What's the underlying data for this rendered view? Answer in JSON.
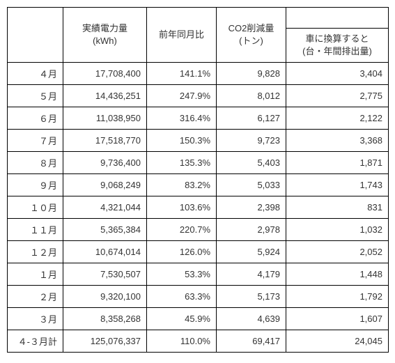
{
  "table": {
    "columns": {
      "month": "",
      "kwh": "実績電力量\n(kWh)",
      "yoy": "前年同月比",
      "co2": "CO2削減量\n(トン)",
      "car_top": "",
      "car_sub": "車に換算すると\n(台・年間排出量)"
    },
    "rows": [
      {
        "month": "４月",
        "kwh": "17,708,400",
        "yoy": "141.1%",
        "co2": "9,828",
        "car": "3,404"
      },
      {
        "month": "５月",
        "kwh": "14,436,251",
        "yoy": "247.9%",
        "co2": "8,012",
        "car": "2,775"
      },
      {
        "month": "６月",
        "kwh": "11,038,950",
        "yoy": "316.4%",
        "co2": "6,127",
        "car": "2,122"
      },
      {
        "month": "７月",
        "kwh": "17,518,770",
        "yoy": "150.3%",
        "co2": "9,723",
        "car": "3,368"
      },
      {
        "month": "８月",
        "kwh": "9,736,400",
        "yoy": "135.3%",
        "co2": "5,403",
        "car": "1,871"
      },
      {
        "month": "９月",
        "kwh": "9,068,249",
        "yoy": "83.2%",
        "co2": "5,033",
        "car": "1,743"
      },
      {
        "month": "１０月",
        "kwh": "4,321,044",
        "yoy": "103.6%",
        "co2": "2,398",
        "car": "831"
      },
      {
        "month": "１１月",
        "kwh": "5,365,384",
        "yoy": "220.7%",
        "co2": "2,978",
        "car": "1,032"
      },
      {
        "month": "１２月",
        "kwh": "10,674,014",
        "yoy": "126.0%",
        "co2": "5,924",
        "car": "2,052"
      },
      {
        "month": "１月",
        "kwh": "7,530,507",
        "yoy": "53.3%",
        "co2": "4,179",
        "car": "1,448"
      },
      {
        "month": "２月",
        "kwh": "9,320,100",
        "yoy": "63.3%",
        "co2": "5,173",
        "car": "1,792"
      },
      {
        "month": "３月",
        "kwh": "8,358,268",
        "yoy": "45.9%",
        "co2": "4,639",
        "car": "1,607"
      },
      {
        "month": "４-３月計",
        "kwh": "125,076,337",
        "yoy": "110.0%",
        "co2": "69,417",
        "car": "24,045"
      }
    ],
    "colors": {
      "background": "#ffffff",
      "border": "#000000",
      "text": "#333333"
    },
    "font_size": 13
  }
}
